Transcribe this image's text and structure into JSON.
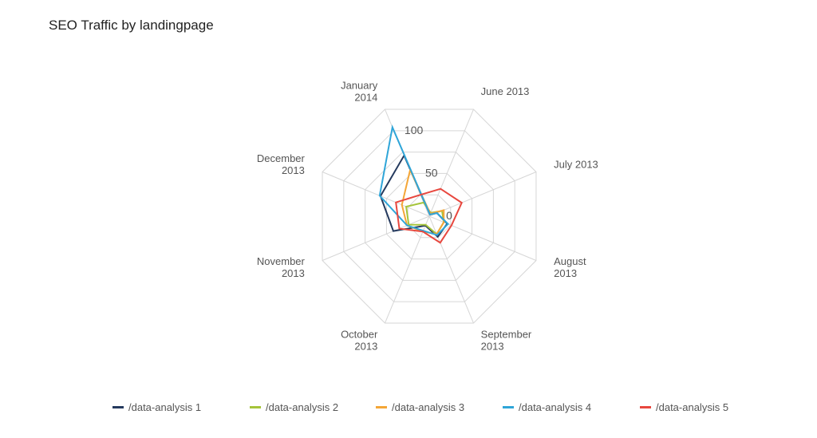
{
  "chart_data": {
    "type": "radar",
    "title": "SEO Traffic by landingpage",
    "categories": [
      [
        "June 2013"
      ],
      [
        "July 2013"
      ],
      [
        "August",
        "2013"
      ],
      [
        "September",
        "2013"
      ],
      [
        "October",
        "2013"
      ],
      [
        "November",
        "2013"
      ],
      [
        "December",
        "2013"
      ],
      [
        "January",
        "2014"
      ]
    ],
    "radial_ticks": [
      "0",
      "50",
      "100"
    ],
    "rmax": 125,
    "grid": true,
    "legend_position": "bottom",
    "series": [
      {
        "name": "/data-analysis 1",
        "color": "#253A5E",
        "values": [
          2,
          9,
          21,
          24,
          11,
          42,
          57,
          71
        ]
      },
      {
        "name": "/data-analysis 2",
        "color": "#A5C43A",
        "values": [
          4,
          15,
          17,
          21,
          10,
          24,
          27,
          16
        ]
      },
      {
        "name": "/data-analysis 3",
        "color": "#F4A637",
        "values": [
          3,
          17,
          17,
          21,
          18,
          26,
          32,
          54
        ]
      },
      {
        "name": "/data-analysis 4",
        "color": "#2FA5D8",
        "values": [
          2,
          9,
          22,
          22,
          17,
          26,
          58,
          104
        ]
      },
      {
        "name": "/data-analysis 5",
        "color": "#E8473E",
        "values": [
          32,
          38,
          26,
          31,
          18,
          35,
          39,
          25
        ]
      }
    ]
  }
}
